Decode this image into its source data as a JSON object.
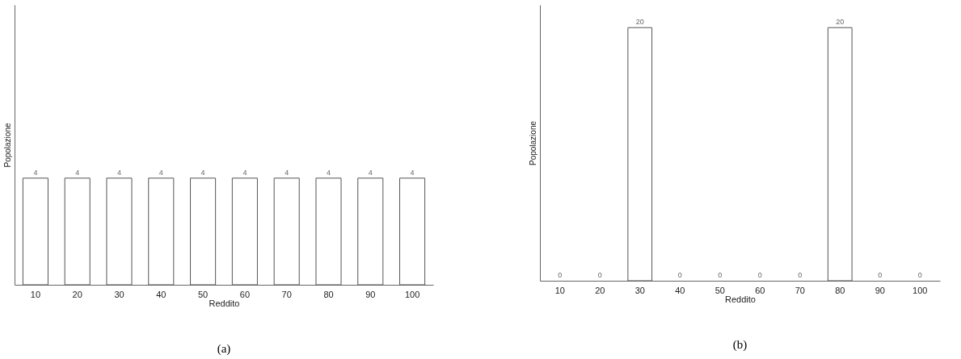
{
  "chart_data": [
    {
      "type": "bar",
      "xlabel": "Reddito",
      "ylabel": "Popolazione",
      "categories": [
        "10",
        "20",
        "30",
        "40",
        "50",
        "60",
        "70",
        "80",
        "90",
        "100"
      ],
      "values": [
        4,
        4,
        4,
        4,
        4,
        4,
        4,
        4,
        4,
        4
      ],
      "color": "#ffffff",
      "ylim": [
        0,
        10.5
      ],
      "data_labels": true,
      "tick_labels": "x",
      "annotations": [
        "(a)"
      ]
    },
    {
      "type": "bar",
      "xlabel": "Reddito",
      "ylabel": "Popolazione",
      "categories": [
        "10",
        "20",
        "30",
        "40",
        "50",
        "60",
        "70",
        "80",
        "90",
        "100"
      ],
      "values": [
        0,
        0,
        20,
        0,
        0,
        0,
        0,
        20,
        0,
        0
      ],
      "color": "#ffffff",
      "ylim": [
        0,
        21.8
      ],
      "data_labels": true,
      "tick_labels": "x",
      "annotations": [
        "(b)"
      ]
    }
  ]
}
